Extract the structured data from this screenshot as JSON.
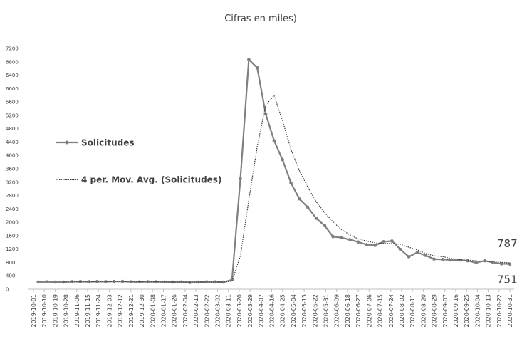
{
  "chart_data": {
    "type": "line",
    "title": "Cifras en miles)",
    "x": [
      "2019-10-05",
      "2019-10-12",
      "2019-10-19",
      "2019-10-26",
      "2019-11-02",
      "2019-11-09",
      "2019-11-16",
      "2019-11-23",
      "2019-11-30",
      "2019-12-07",
      "2019-12-14",
      "2019-12-21",
      "2019-12-28",
      "2020-01-04",
      "2020-01-11",
      "2020-01-18",
      "2020-01-25",
      "2020-02-01",
      "2020-02-08",
      "2020-02-15",
      "2020-02-22",
      "2020-02-29",
      "2020-03-07",
      "2020-03-14",
      "2020-03-21",
      "2020-03-28",
      "2020-04-04",
      "2020-04-11",
      "2020-04-18",
      "2020-04-25",
      "2020-05-02",
      "2020-05-09",
      "2020-05-16",
      "2020-05-23",
      "2020-05-30",
      "2020-06-06",
      "2020-06-13",
      "2020-06-20",
      "2020-06-27",
      "2020-07-04",
      "2020-07-11",
      "2020-07-18",
      "2020-07-25",
      "2020-08-01",
      "2020-08-08",
      "2020-08-15",
      "2020-08-22",
      "2020-08-29",
      "2020-09-05",
      "2020-09-12",
      "2020-09-19",
      "2020-09-26",
      "2020-10-03",
      "2020-10-10",
      "2020-10-17",
      "2020-10-24",
      "2020-10-31"
    ],
    "series": [
      {
        "name": "Solicitudes",
        "color": "#7f7f7f",
        "style": "solid-markers",
        "end_label": "751",
        "values": [
          215,
          220,
          213,
          212,
          225,
          228,
          222,
          228,
          226,
          230,
          233,
          220,
          216,
          223,
          220,
          215,
          212,
          216,
          202,
          212,
          219,
          216,
          211,
          282,
          3300,
          6870,
          6620,
          5240,
          4440,
          3870,
          3180,
          2700,
          2450,
          2120,
          1900,
          1570,
          1540,
          1480,
          1410,
          1330,
          1310,
          1420,
          1440,
          1190,
          970,
          1100,
          1010,
          900,
          890,
          870,
          870,
          850,
          790,
          850,
          800,
          760,
          751
        ]
      },
      {
        "name": "4 per. Mov. Avg. (Solicitudes)",
        "color": "#404040",
        "style": "dotted",
        "end_label": "787",
        "values": [
          null,
          null,
          null,
          215,
          218,
          220,
          222,
          226,
          226,
          228,
          229,
          227,
          225,
          223,
          220,
          219,
          215,
          214,
          211,
          212,
          212,
          213,
          212,
          232,
          1002,
          2666,
          4268,
          5508,
          5793,
          5043,
          4183,
          3548,
          3050,
          2613,
          2293,
          2010,
          1783,
          1623,
          1500,
          1440,
          1383,
          1368,
          1375,
          1340,
          1255,
          1175,
          1068,
          995,
          975,
          918,
          883,
          870,
          845,
          840,
          823,
          800,
          787
        ]
      }
    ],
    "xlim": [
      "2019-10-01",
      "2020-10-31"
    ],
    "xticks": [
      "2019-10-01",
      "2019-10-10",
      "2019-10-19",
      "2019-10-28",
      "2019-11-06",
      "2019-11-15",
      "2019-11-24",
      "2019-12-03",
      "2019-12-12",
      "2019-12-21",
      "2019-12-30",
      "2020-01-08",
      "2020-01-17",
      "2020-01-26",
      "2020-02-04",
      "2020-02-13",
      "2020-02-22",
      "2020-03-02",
      "2020-03-11",
      "2020-03-20",
      "2020-03-29",
      "2020-04-07",
      "2020-04-16",
      "2020-04-25",
      "2020-05-04",
      "2020-05-13",
      "2020-05-22",
      "2020-05-31",
      "2020-06-09",
      "2020-06-18",
      "2020-06-27",
      "2020-07-06",
      "2020-07-15",
      "2020-07-24",
      "2020-08-02",
      "2020-08-11",
      "2020-08-20",
      "2020-08-29",
      "2020-09-07",
      "2020-09-16",
      "2020-09-25",
      "2020-10-04",
      "2020-10-13",
      "2020-10-22",
      "2020-10-31"
    ],
    "ylim": [
      0,
      7200
    ],
    "yticks": [
      0,
      400,
      800,
      1200,
      1600,
      2000,
      2400,
      2800,
      3200,
      3600,
      4000,
      4400,
      4800,
      5200,
      5600,
      6000,
      6400,
      6800,
      7200
    ],
    "grid": false
  }
}
